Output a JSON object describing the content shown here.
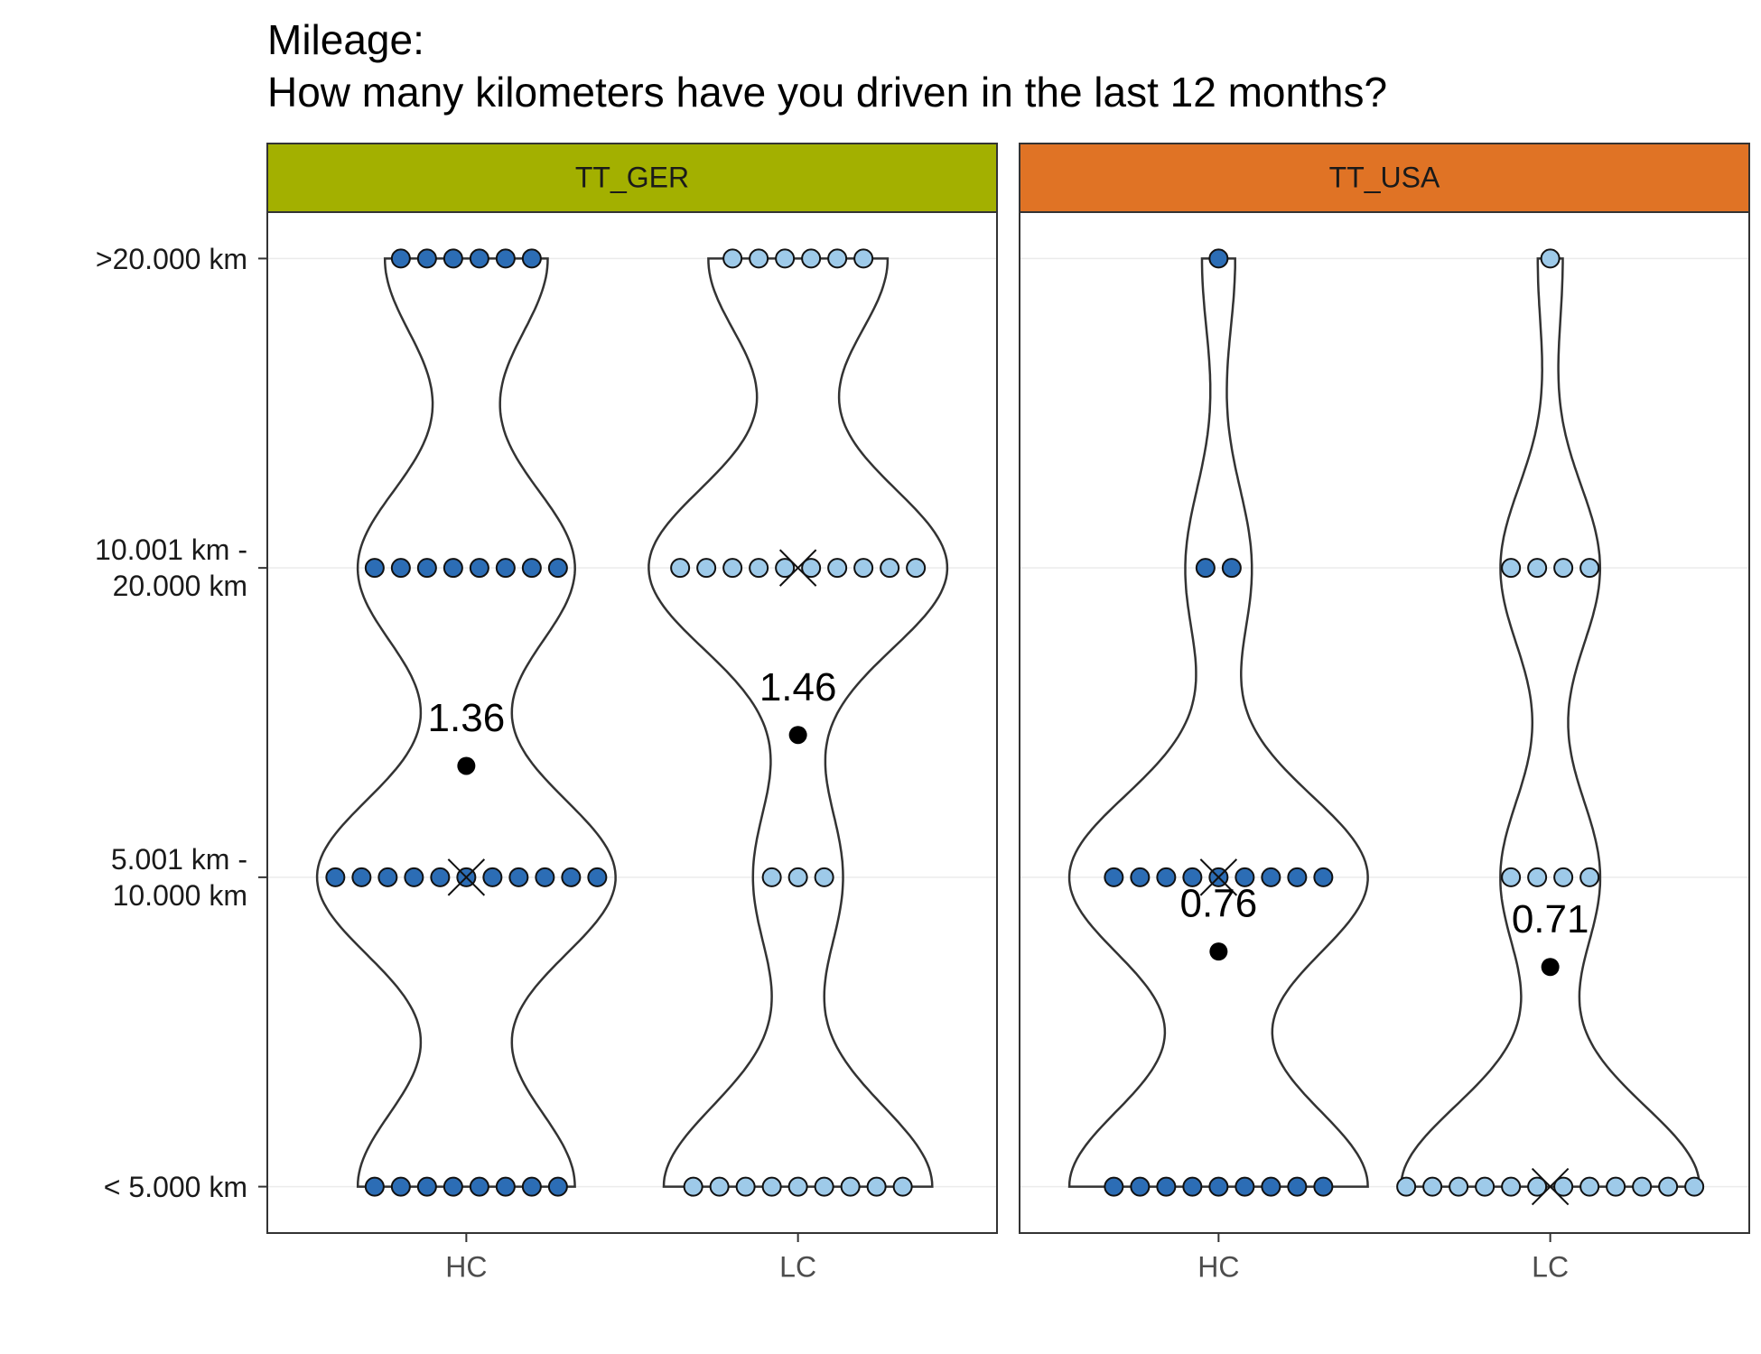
{
  "chart_data": {
    "type": "violin",
    "title": "Mileage:",
    "subtitle": "How many kilometers have you driven in the last 12 months?",
    "ylim": [
      -0.15,
      3.15
    ],
    "yticks": [
      {
        "value": 0,
        "label": "< 5.000 km"
      },
      {
        "value": 1,
        "label": "5.001 km -\n10.000 km"
      },
      {
        "value": 2,
        "label": "10.001 km -\n20.000 km"
      },
      {
        "value": 3,
        "label": ">20.000 km"
      }
    ],
    "grid": true,
    "facets": [
      {
        "name": "TT_GER",
        "color": "#a3b000",
        "groups": [
          {
            "name": "HC",
            "color": "#2c6db5",
            "counts": [
              8,
              11,
              8,
              6
            ],
            "mean": 1.36,
            "median": 1
          },
          {
            "name": "LC",
            "color": "#9ecae9",
            "counts": [
              9,
              3,
              10,
              6
            ],
            "mean": 1.46,
            "median": 2
          }
        ]
      },
      {
        "name": "TT_USA",
        "color": "#e07325",
        "groups": [
          {
            "name": "HC",
            "color": "#2c6db5",
            "counts": [
              9,
              9,
              2,
              1
            ],
            "mean": 0.76,
            "median": 1
          },
          {
            "name": "LC",
            "color": "#9ecae9",
            "counts": [
              12,
              4,
              4,
              1
            ],
            "mean": 0.71,
            "median": 0
          }
        ]
      }
    ]
  }
}
